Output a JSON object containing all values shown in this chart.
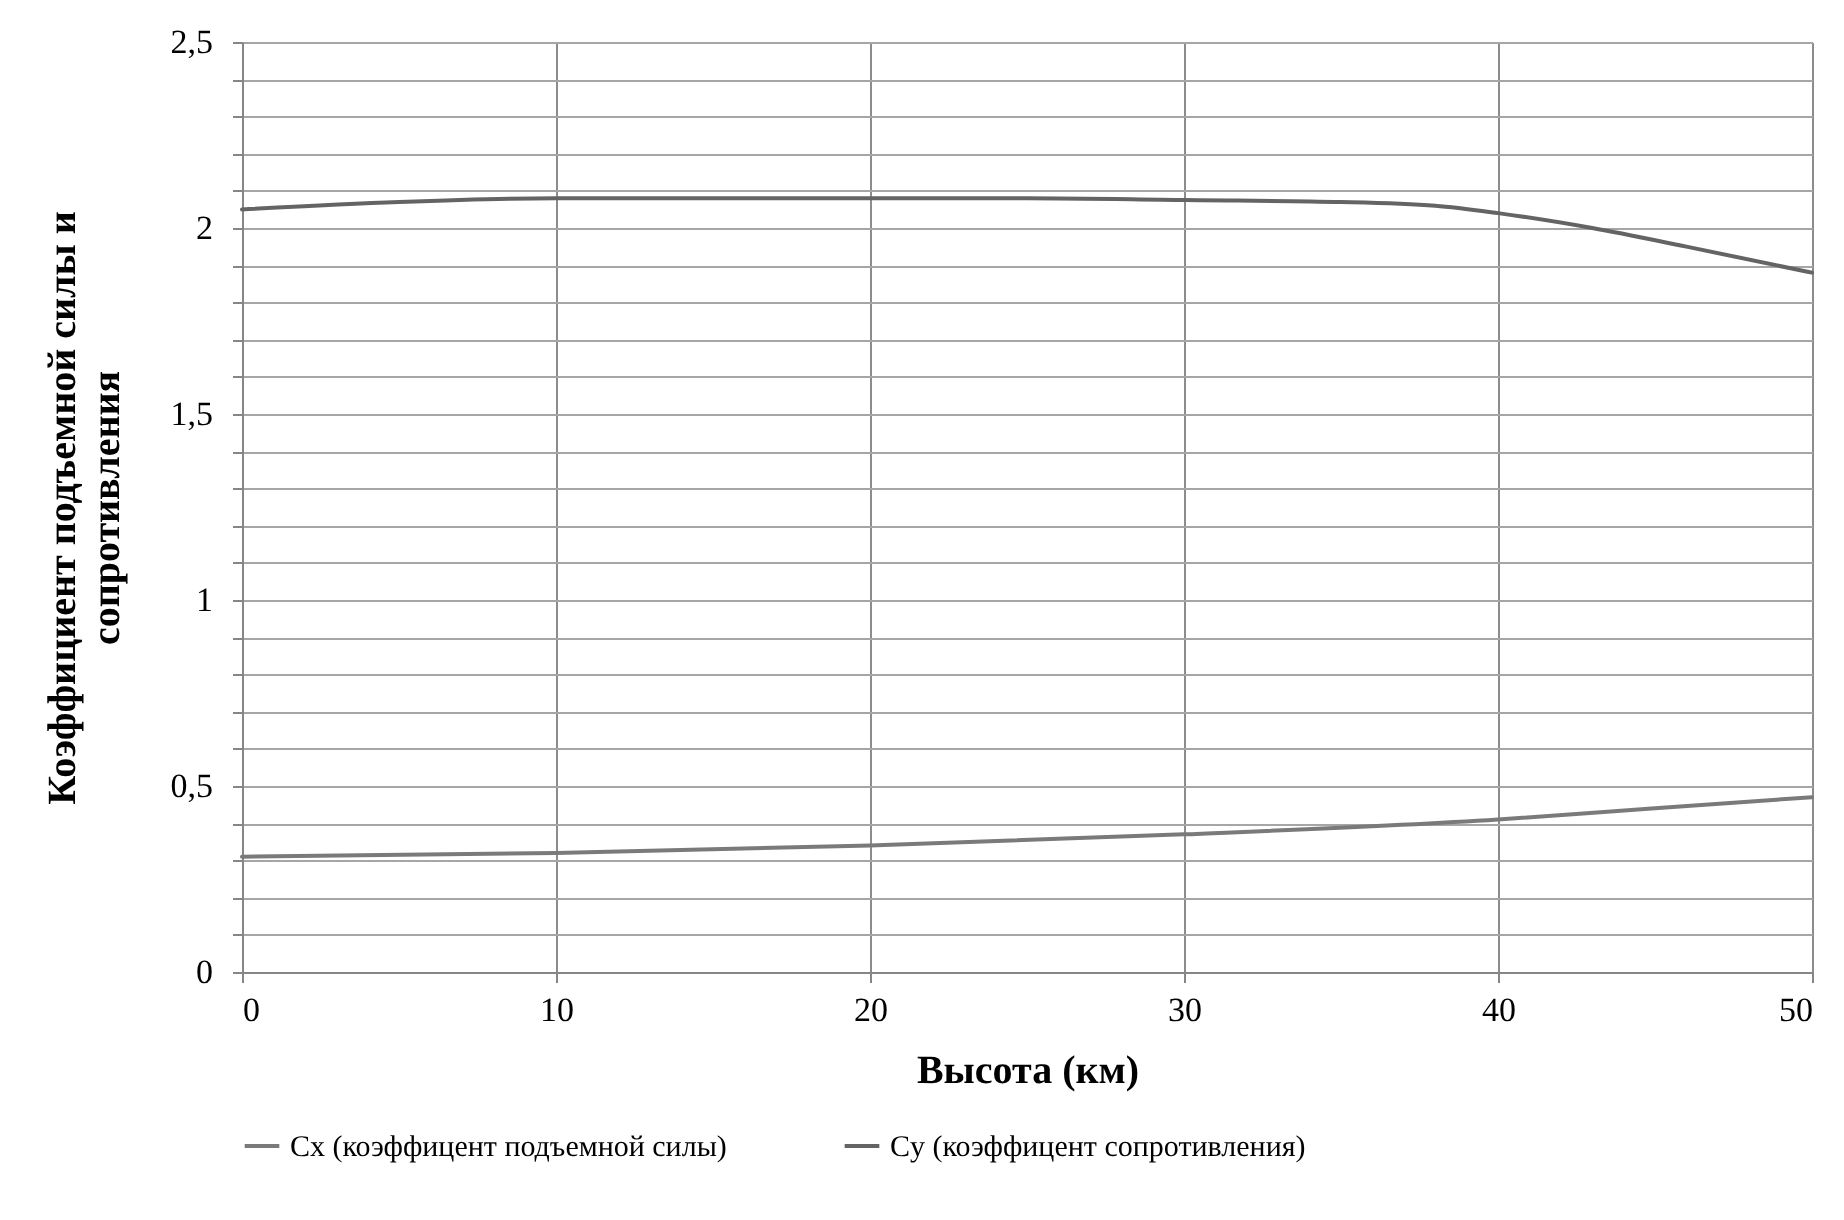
{
  "chart_data": {
    "type": "line",
    "xlabel": "Высота (км)",
    "ylabel": "Коэффициент подъемной силы и сопротивления",
    "xlim": [
      0,
      50
    ],
    "xticks": [
      0,
      10,
      20,
      30,
      40,
      50
    ],
    "ylim": [
      0,
      2.5
    ],
    "yticks": [
      {
        "value": 0,
        "label": "0"
      },
      {
        "value": 0.1,
        "label": null
      },
      {
        "value": 0.2,
        "label": null
      },
      {
        "value": 0.3,
        "label": null
      },
      {
        "value": 0.4,
        "label": null
      },
      {
        "value": 0.5,
        "label": "0,5"
      },
      {
        "value": 0.6,
        "label": null
      },
      {
        "value": 0.7,
        "label": null
      },
      {
        "value": 0.8,
        "label": null
      },
      {
        "value": 0.9,
        "label": null
      },
      {
        "value": 1,
        "label": "1"
      },
      {
        "value": 1.1,
        "label": null
      },
      {
        "value": 1.2,
        "label": null
      },
      {
        "value": 1.3,
        "label": null
      },
      {
        "value": 1.4,
        "label": null
      },
      {
        "value": 1.5,
        "label": "1,5"
      },
      {
        "value": 1.6,
        "label": null
      },
      {
        "value": 1.7,
        "label": null
      },
      {
        "value": 1.8,
        "label": null
      },
      {
        "value": 1.9,
        "label": null
      },
      {
        "value": 2,
        "label": "2"
      },
      {
        "value": 2.1,
        "label": null
      },
      {
        "value": 2.2,
        "label": null
      },
      {
        "value": 2.3,
        "label": null
      },
      {
        "value": 2.4,
        "label": null
      },
      {
        "value": 2.5,
        "label": "2,5"
      }
    ],
    "grid": true,
    "legend": "bottom",
    "marker": "none",
    "line_style": "solid",
    "series": [
      {
        "name": "Cx (коэффицент  подъемной силы)",
        "color": "#7a7a7a",
        "x": [
          0,
          10,
          20,
          30,
          40,
          45,
          50
        ],
        "values": [
          0.31,
          0.32,
          0.34,
          0.37,
          0.41,
          0.44,
          0.47
        ]
      },
      {
        "name": "Cy (коэффицент  сопротивления)",
        "color": "#646464",
        "x": [
          0,
          5,
          10,
          20,
          25,
          30,
          35,
          38,
          40,
          43,
          46,
          50
        ],
        "values": [
          2.05,
          2.07,
          2.08,
          2.08,
          2.08,
          2.075,
          2.07,
          2.06,
          2.04,
          2.0,
          1.95,
          1.88
        ]
      }
    ]
  }
}
